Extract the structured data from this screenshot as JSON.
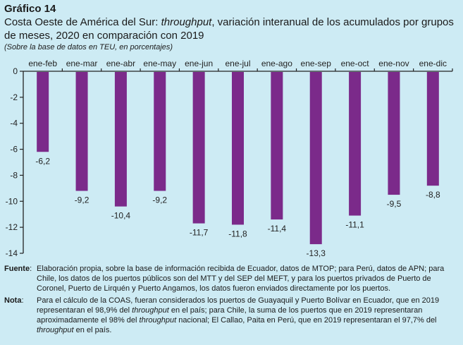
{
  "figure": {
    "number": "Gráfico 14",
    "title_parts": [
      {
        "text": "Costa Oeste de América del Sur: ",
        "italic": false
      },
      {
        "text": "throughput",
        "italic": true
      },
      {
        "text": ", variación interanual de los acumulados por grupos de meses, 2020 en comparación con 2019",
        "italic": false
      }
    ],
    "subtitle": "(Sobre la base de datos en TEU, en porcentajes)"
  },
  "chart_data": {
    "type": "bar",
    "title": "Costa Oeste de América del Sur: throughput, variación interanual de los acumulados por grupos de meses, 2020 en comparación con 2019",
    "xlabel": "",
    "ylabel": "",
    "categories": [
      "ene-feb",
      "ene-mar",
      "ene-abr",
      "ene-may",
      "ene-jun",
      "ene-jul",
      "ene-ago",
      "ene-sep",
      "ene-oct",
      "ene-nov",
      "ene-dic"
    ],
    "values": [
      -6.2,
      -9.2,
      -10.4,
      -9.2,
      -11.7,
      -11.8,
      -11.4,
      -13.3,
      -11.1,
      -9.5,
      -8.8
    ],
    "value_labels": [
      "-6,2",
      "-9,2",
      "-10,4",
      "-9,2",
      "-11,7",
      "-11,8",
      "-11,4",
      "-13,3",
      "-11,1",
      "-9,5",
      "-8,8"
    ],
    "ylim": [
      -14,
      0
    ],
    "yticks": [
      0,
      -2,
      -4,
      -6,
      -8,
      -10,
      -12,
      -14
    ],
    "ytick_labels": [
      "0",
      "-2",
      "-4",
      "-6",
      "-8",
      "-10",
      "-12",
      "-14"
    ],
    "xaxis_position": "top",
    "grid": false,
    "bar_color": "#7b2a8a"
  },
  "notes": {
    "source_label": "Fuente",
    "source_text": "Elaboración propia, sobre la base de información recibida de Ecuador, datos de MTOP; para Perú, datos de APN; para Chile, los datos de los puertos públicos son del MTT y del SEP del MEFT, y para los puertos privados de Puerto de Coronel, Puerto de Lirquén y Puerto Angamos, los datos fueron enviados directamente por los puertos.",
    "note_label": "Nota",
    "note_parts": [
      {
        "text": "Para el cálculo de la COAS, fueran considerados los puertos de Guayaquil y Puerto Bolívar en Ecuador, que en 2019 representaran el 98,9% del ",
        "italic": false
      },
      {
        "text": "throughput",
        "italic": true
      },
      {
        "text": " en el país; para Chile, la suma de los puertos que en 2019 representaran aproximadamente el 98% del ",
        "italic": false
      },
      {
        "text": "throughput",
        "italic": true
      },
      {
        "text": " nacional; El Callao, Paita en Perú, que en 2019 representaran el 97,7% del ",
        "italic": false
      },
      {
        "text": "throughput",
        "italic": true
      },
      {
        "text": " en el país.",
        "italic": false
      }
    ]
  }
}
